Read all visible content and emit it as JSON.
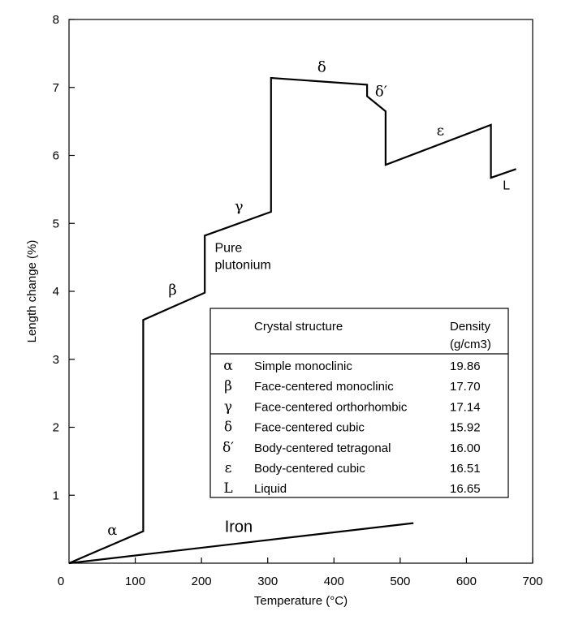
{
  "chart_data": {
    "type": "line",
    "xlabel": "Temperature (°C)",
    "ylabel": "Length change (%)",
    "xlim": [
      0,
      700
    ],
    "ylim": [
      0,
      8
    ],
    "x_ticks": [
      "0",
      "100",
      "200",
      "300",
      "400",
      "500",
      "600",
      "700"
    ],
    "y_ticks": [
      "1",
      "2",
      "3",
      "4",
      "5",
      "6",
      "7",
      "8"
    ],
    "grid": false,
    "series": [
      {
        "name": "Pure plutonium",
        "points": [
          [
            0,
            0
          ],
          [
            112,
            0.47
          ],
          [
            112,
            3.58
          ],
          [
            205,
            3.98
          ],
          [
            205,
            4.82
          ],
          [
            305,
            5.17
          ],
          [
            305,
            7.14
          ],
          [
            450,
            7.04
          ],
          [
            450,
            6.87
          ],
          [
            478,
            6.65
          ],
          [
            478,
            5.86
          ],
          [
            637,
            6.45
          ],
          [
            637,
            5.67
          ],
          [
            675,
            5.8
          ]
        ]
      },
      {
        "name": "Iron",
        "points": [
          [
            0,
            0
          ],
          [
            520,
            0.59
          ]
        ]
      }
    ],
    "annotations": [
      {
        "text": "α",
        "x": 58,
        "y": 0.42
      },
      {
        "text": "β",
        "x": 150,
        "y": 3.95
      },
      {
        "text": "γ",
        "x": 250,
        "y": 5.18
      },
      {
        "text": "δ",
        "x": 375,
        "y": 7.23
      },
      {
        "text": "δ′",
        "x": 462,
        "y": 6.87
      },
      {
        "text": "ε",
        "x": 555,
        "y": 6.3
      },
      {
        "text": "L",
        "x": 655,
        "y": 5.5
      },
      {
        "text": "Pure",
        "x": 220,
        "y": 4.58
      },
      {
        "text": "plutonium",
        "x": 220,
        "y": 4.33
      },
      {
        "text": "Iron",
        "x": 235,
        "y": 0.46
      }
    ],
    "legend_table": {
      "headers": [
        "",
        "Crystal structure",
        "Density",
        "(g/cm3)"
      ],
      "rows": [
        {
          "symbol": "α",
          "structure": "Simple monoclinic",
          "density": "19.86"
        },
        {
          "symbol": "β",
          "structure": "Face-centered monoclinic",
          "density": "17.70"
        },
        {
          "symbol": "γ",
          "structure": "Face-centered orthorhombic",
          "density": "17.14"
        },
        {
          "symbol": "δ",
          "structure": "Face-centered cubic",
          "density": "15.92"
        },
        {
          "symbol": "δ′",
          "structure": "Body-centered tetragonal",
          "density": "16.00"
        },
        {
          "symbol": "ε",
          "structure": "Body-centered cubic",
          "density": "16.51"
        },
        {
          "symbol": "L",
          "structure": "Liquid",
          "density": "16.65"
        }
      ]
    }
  }
}
